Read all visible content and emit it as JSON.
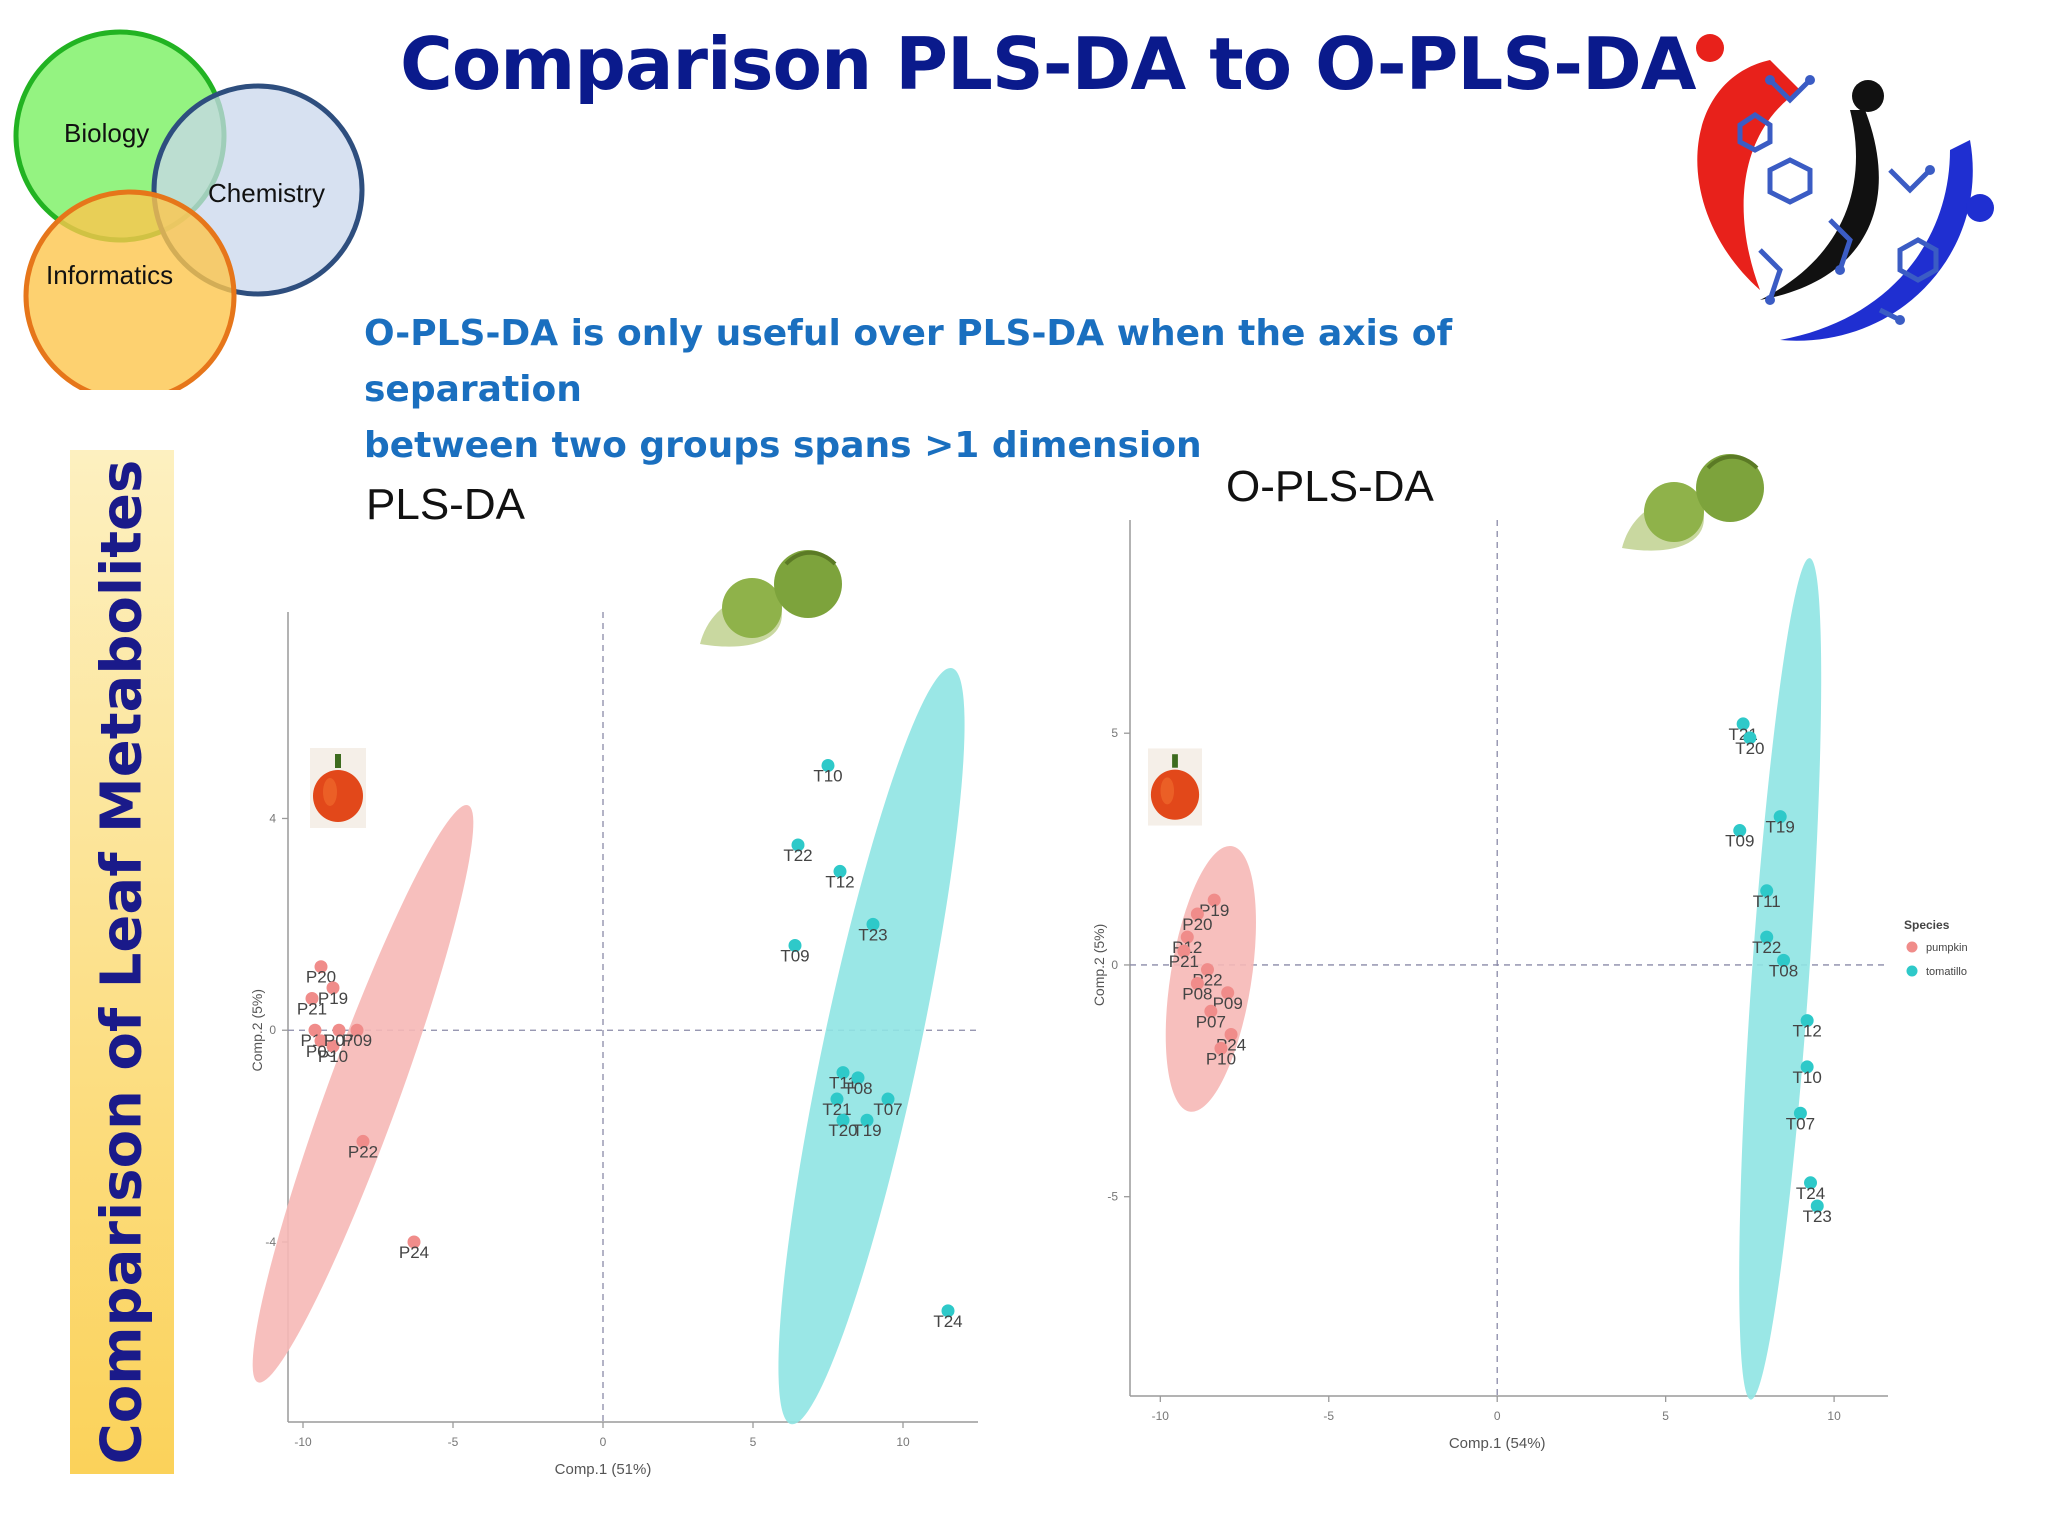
{
  "slide": {
    "title": "Comparison PLS-DA to O-PLS-DA",
    "subtitle_line1": "O-PLS-DA is only useful over PLS-DA when the axis of separation",
    "subtitle_line2": "between two groups spans >1 dimension",
    "sidebar_text": "Comparison of Leaf Metabolites"
  },
  "venn": {
    "labels": [
      "Biology",
      "Chemistry",
      "Informatics"
    ],
    "colors": [
      "#8ef27a",
      "#c9d7ec",
      "#fcc64c"
    ],
    "stroke_colors": [
      "#22b322",
      "#2e4e7e",
      "#e6761a"
    ]
  },
  "logo": {
    "icon": "metabolomics-logo-icon"
  },
  "colors": {
    "pumpkin": "#f08c8a",
    "tomatillo": "#2ec9c9",
    "ellipse_pumpkin": "#f6b8b6",
    "ellipse_tomatillo": "#8fe4e3"
  },
  "chart_data": [
    {
      "type": "scatter",
      "title": "PLS-DA",
      "xlabel": "Comp.1 (51%)",
      "ylabel": "Comp.2 (5%)",
      "xlim": [
        -10.5,
        12.5
      ],
      "ylim": [
        -7.4,
        7.9
      ],
      "x_ticks": [
        -10,
        -5,
        0,
        5,
        10
      ],
      "y_ticks": [
        -4,
        0,
        4
      ],
      "series": [
        {
          "name": "pumpkin",
          "points": [
            {
              "label": "P20",
              "x": -9.4,
              "y": 1.2
            },
            {
              "label": "P21",
              "x": -9.7,
              "y": 0.6
            },
            {
              "label": "P19",
              "x": -9.0,
              "y": 0.8
            },
            {
              "label": "P11",
              "x": -9.6,
              "y": 0.0
            },
            {
              "label": "P05",
              "x": -9.4,
              "y": -0.2
            },
            {
              "label": "P10",
              "x": -9.0,
              "y": -0.3
            },
            {
              "label": "P07",
              "x": -8.8,
              "y": 0.0
            },
            {
              "label": "P09",
              "x": -8.2,
              "y": 0.0
            },
            {
              "label": "P22",
              "x": -8.0,
              "y": -2.1
            },
            {
              "label": "P24",
              "x": -6.3,
              "y": -4.0
            }
          ]
        },
        {
          "name": "tomatillo",
          "points": [
            {
              "label": "T10",
              "x": 7.5,
              "y": 5.0
            },
            {
              "label": "T22",
              "x": 6.5,
              "y": 3.5
            },
            {
              "label": "T12",
              "x": 7.9,
              "y": 3.0
            },
            {
              "label": "T23",
              "x": 9.0,
              "y": 2.0
            },
            {
              "label": "T09",
              "x": 6.4,
              "y": 1.6
            },
            {
              "label": "T11",
              "x": 8.0,
              "y": -0.8
            },
            {
              "label": "T08",
              "x": 8.5,
              "y": -0.9
            },
            {
              "label": "T21",
              "x": 7.8,
              "y": -1.3
            },
            {
              "label": "T07",
              "x": 9.5,
              "y": -1.3
            },
            {
              "label": "T20",
              "x": 8.0,
              "y": -1.7
            },
            {
              "label": "T19",
              "x": 8.8,
              "y": -1.7
            },
            {
              "label": "T24",
              "x": 11.5,
              "y": -5.3
            }
          ]
        }
      ]
    },
    {
      "type": "scatter",
      "title": "O-PLS-DA",
      "xlabel": "Comp.1 (54%)",
      "ylabel": "Comp.2 (5%)",
      "xlim": [
        -10.9,
        11.6
      ],
      "ylim": [
        -9.3,
        9.6
      ],
      "x_ticks": [
        -10,
        -5,
        0,
        5,
        10
      ],
      "y_ticks": [
        -5,
        0,
        5
      ],
      "legend_title": "Species",
      "legend_position": "right",
      "series": [
        {
          "name": "pumpkin",
          "points": [
            {
              "label": "P19",
              "x": -8.4,
              "y": 1.4
            },
            {
              "label": "P20",
              "x": -8.9,
              "y": 1.1
            },
            {
              "label": "P12",
              "x": -9.2,
              "y": 0.6
            },
            {
              "label": "P21",
              "x": -9.3,
              "y": 0.3
            },
            {
              "label": "P22",
              "x": -8.6,
              "y": -0.1
            },
            {
              "label": "P08",
              "x": -8.9,
              "y": -0.4
            },
            {
              "label": "P09",
              "x": -8.0,
              "y": -0.6
            },
            {
              "label": "P07",
              "x": -8.5,
              "y": -1.0
            },
            {
              "label": "P24",
              "x": -7.9,
              "y": -1.5
            },
            {
              "label": "P10",
              "x": -8.2,
              "y": -1.8
            }
          ]
        },
        {
          "name": "tomatillo",
          "points": [
            {
              "label": "T21",
              "x": 7.3,
              "y": 5.2
            },
            {
              "label": "T20",
              "x": 7.5,
              "y": 4.9
            },
            {
              "label": "T19",
              "x": 8.4,
              "y": 3.2
            },
            {
              "label": "T09",
              "x": 7.2,
              "y": 2.9
            },
            {
              "label": "T11",
              "x": 8.0,
              "y": 1.6
            },
            {
              "label": "T22",
              "x": 8.0,
              "y": 0.6
            },
            {
              "label": "T08",
              "x": 8.5,
              "y": 0.1
            },
            {
              "label": "T12",
              "x": 9.2,
              "y": -1.2
            },
            {
              "label": "T10",
              "x": 9.2,
              "y": -2.2
            },
            {
              "label": "T07",
              "x": 9.0,
              "y": -3.2
            },
            {
              "label": "T24",
              "x": 9.3,
              "y": -4.7
            },
            {
              "label": "T23",
              "x": 9.5,
              "y": -5.2
            }
          ]
        }
      ]
    }
  ]
}
